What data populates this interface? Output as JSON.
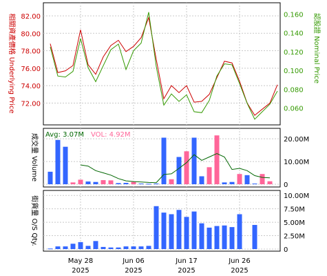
{
  "chart_data": [
    {
      "type": "line",
      "panel": "price",
      "left_axis_label": "相關資產價格 Underlying Price",
      "right_axis_label": "認股證 Nominal Price",
      "left_color": "#cc0000",
      "right_color": "#339900",
      "left_ylim": [
        69.5,
        83.5
      ],
      "left_ticks": [
        "72.00",
        "74.00",
        "76.00",
        "78.00",
        "80.00",
        "82.00"
      ],
      "left_tick_values": [
        72,
        74,
        76,
        78,
        80,
        82
      ],
      "right_ylim": [
        0.042,
        0.172
      ],
      "right_ticks": [
        "0.060",
        "0.080",
        "0.100",
        "0.120",
        "0.140",
        "0.160"
      ],
      "right_tick_values": [
        0.06,
        0.08,
        0.1,
        0.12,
        0.14,
        0.16
      ],
      "grid": true,
      "series": [
        {
          "axis": "left",
          "color": "#cc0000",
          "values": [
            78.8,
            75.5,
            75.7,
            76.3,
            80.4,
            76.4,
            75.3,
            77.3,
            78.6,
            79.2,
            77.9,
            78.5,
            79.5,
            81.8,
            77.0,
            72.5,
            74.0,
            73.2,
            74.0,
            72.1,
            72.2,
            73.0,
            74.9,
            76.8,
            76.6,
            74.5,
            72.0,
            70.6,
            71.3,
            72.0,
            74.1
          ]
        },
        {
          "axis": "right",
          "color": "#339900",
          "values": [
            0.125,
            0.094,
            0.093,
            0.099,
            0.134,
            0.103,
            0.088,
            0.105,
            0.122,
            0.128,
            0.101,
            0.121,
            0.129,
            0.162,
            0.104,
            0.063,
            0.075,
            0.067,
            0.074,
            0.056,
            0.055,
            0.068,
            0.094,
            0.107,
            0.106,
            0.086,
            0.065,
            0.048,
            0.056,
            0.064,
            0.078
          ]
        }
      ]
    },
    {
      "type": "bar",
      "panel": "volume",
      "left_axis_label": "成交量 Volume",
      "avg_label": "Avg: 3.07M",
      "vol_label": "VOL: 4.92M",
      "ylim": [
        0,
        24
      ],
      "right_ticks": [
        "0",
        "10.00M",
        "20.00M"
      ],
      "right_tick_values": [
        0,
        10,
        20
      ],
      "grid": true,
      "colors": {
        "up": "#ff6699",
        "down": "#3366ff",
        "avg": "#006600"
      },
      "bars": [
        {
          "v": 5.5,
          "c": "down"
        },
        {
          "v": 19.5,
          "c": "down"
        },
        {
          "v": 16.5,
          "c": "down"
        },
        {
          "v": 0.8,
          "c": "up"
        },
        {
          "v": 2.0,
          "c": "up"
        },
        {
          "v": 1.2,
          "c": "down"
        },
        {
          "v": 1.0,
          "c": "down"
        },
        {
          "v": 1.8,
          "c": "up"
        },
        {
          "v": 1.7,
          "c": "up"
        },
        {
          "v": 0.5,
          "c": "down"
        },
        {
          "v": 0.6,
          "c": "down"
        },
        {
          "v": 1.0,
          "c": "up"
        },
        {
          "v": 0.3,
          "c": "down"
        },
        {
          "v": 0.2,
          "c": "down"
        },
        {
          "v": 0.3,
          "c": "down"
        },
        {
          "v": 20.5,
          "c": "down"
        },
        {
          "v": 2.2,
          "c": "up"
        },
        {
          "v": 12.0,
          "c": "down"
        },
        {
          "v": 14.5,
          "c": "up"
        },
        {
          "v": 20.5,
          "c": "down"
        },
        {
          "v": 3.5,
          "c": "down"
        },
        {
          "v": 7.5,
          "c": "up"
        },
        {
          "v": 21.5,
          "c": "up"
        },
        {
          "v": 0.8,
          "c": "down"
        },
        {
          "v": 1.0,
          "c": "down"
        },
        {
          "v": 4.5,
          "c": "up"
        },
        {
          "v": 4.0,
          "c": "down"
        },
        {
          "v": 0.3,
          "c": "down"
        },
        {
          "v": 4.5,
          "c": "up"
        },
        {
          "v": 1.3,
          "c": "up"
        }
      ],
      "avg_line": [
        null,
        null,
        null,
        null,
        8.5,
        8.0,
        6.0,
        5.0,
        4.0,
        2.5,
        1.5,
        1.2,
        1.0,
        0.8,
        0.7,
        4.3,
        4.6,
        7.0,
        9.5,
        13.0,
        10.5,
        12.0,
        13.5,
        12.0,
        6.5,
        7.0,
        6.0,
        3.8,
        3.0,
        2.8
      ]
    },
    {
      "type": "bar",
      "panel": "os_qty",
      "left_axis_label": "街貨量 O/S Qty.",
      "ylim": [
        0,
        10.8
      ],
      "right_ticks": [
        "0",
        "2.50M",
        "5.00M",
        "7.50M",
        "10.00M"
      ],
      "right_tick_values": [
        0,
        2.5,
        5,
        7.5,
        10
      ],
      "grid": true,
      "color": "#3366ff",
      "values": [
        0.1,
        0.5,
        0.5,
        1.0,
        1.3,
        0.6,
        1.5,
        0.4,
        0.3,
        0.3,
        0.5,
        0.5,
        0.5,
        0.6,
        8.0,
        6.8,
        6.5,
        7.3,
        6.0,
        7.0,
        4.8,
        4.0,
        4.3,
        4.4,
        4.1,
        6.5,
        null,
        4.5
      ]
    }
  ],
  "x_axis": {
    "ticks": [
      {
        "label": "May 28",
        "year": "2025",
        "index": 4
      },
      {
        "label": "Jun 06",
        "year": "2025",
        "index": 11
      },
      {
        "label": "Jun 17",
        "year": "2025",
        "index": 18
      },
      {
        "label": "Jun 26",
        "year": "2025",
        "index": 25
      }
    ]
  }
}
